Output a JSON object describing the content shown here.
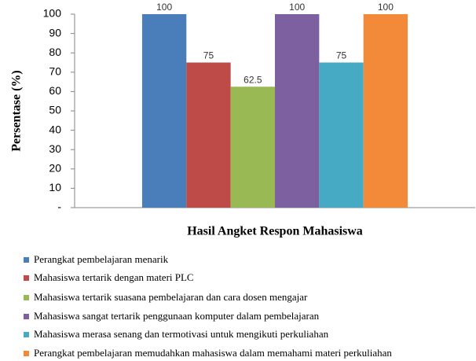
{
  "chart_data": {
    "type": "bar",
    "x_label": "Hasil Angket Respon Mahasiswa",
    "y_label": "Persentase (%)",
    "categories": [
      null
    ],
    "series": [
      {
        "name": "Perangkat pembelajaran menarik",
        "color": "#4a7ebb",
        "values": [
          100
        ]
      },
      {
        "name": "Mahasiswa tertarik dengan materi PLC",
        "color": "#be4b48",
        "values": [
          75
        ]
      },
      {
        "name": "Mahasiswa tertarik suasana pembelajaran dan cara dosen mengajar",
        "color": "#98b954",
        "values": [
          62.5
        ]
      },
      {
        "name": "Mahasiswa sangat tertarik penggunaan komputer dalam pembelajaran",
        "color": "#7d60a0",
        "values": [
          100
        ]
      },
      {
        "name": "Mahasiswa merasa senang dan termotivasi untuk mengikuti perkuliahan",
        "color": "#46aac5",
        "values": [
          75
        ]
      },
      {
        "name": "Perangkat pembelajaran memudahkan mahasiswa dalam memahami materi perkuliahan",
        "color": "#f28a3a",
        "values": [
          100
        ]
      }
    ],
    "ylim": [
      0,
      100
    ],
    "yticks": [
      {
        "value": 0,
        "label": "-"
      },
      10,
      20,
      30,
      40,
      50,
      60,
      70,
      80,
      90,
      100
    ],
    "grid": false,
    "legend": "bottom"
  }
}
